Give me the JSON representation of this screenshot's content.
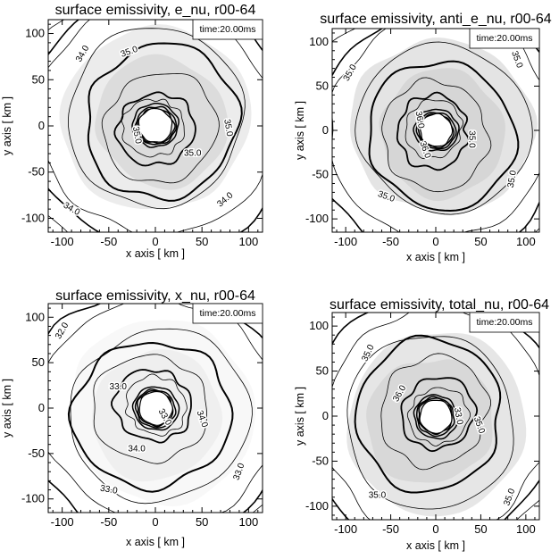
{
  "chart_data": [
    {
      "type": "contour",
      "title": "surface emissivity, e_nu, r00-64",
      "annotation": "time:20.00ms",
      "xlabel": "x axis [ km ]",
      "ylabel": "y axis [ km ]",
      "xlim": [
        -115,
        115
      ],
      "ylim": [
        -115,
        115
      ],
      "xticks": [
        -100,
        -50,
        0,
        50,
        100
      ],
      "yticks": [
        -100,
        -50,
        0,
        50,
        100
      ],
      "contour_labels": [
        "34.0",
        "35.0",
        "35.0",
        "35.0",
        "35.0",
        "34.0",
        "34.0"
      ],
      "fill_colors": [
        "#ececec",
        "#dcdcdc"
      ]
    },
    {
      "type": "contour",
      "title": "surface emissivity, anti_e_nu, r00-64",
      "annotation": "time:20.00ms",
      "xlabel": "x axis [ km ]",
      "ylabel": "y axis [ km ]",
      "xlim": [
        -115,
        115
      ],
      "ylim": [
        -115,
        115
      ],
      "xticks": [
        -100,
        -50,
        0,
        50,
        100
      ],
      "yticks": [
        -100,
        -50,
        0,
        50,
        100
      ],
      "contour_labels": [
        "35.0",
        "35.0",
        "36.0",
        "36.0",
        "35.0",
        "35.0",
        "35.0"
      ],
      "fill_colors": [
        "#e4e4e4",
        "#d6d6d6"
      ]
    },
    {
      "type": "contour",
      "title": "surface emissivity, x_nu, r00-64",
      "annotation": "time:20.00ms",
      "xlabel": "x axis [ km ]",
      "ylabel": "y axis [ km ]",
      "xlim": [
        -115,
        115
      ],
      "ylim": [
        -115,
        115
      ],
      "xticks": [
        -100,
        -50,
        0,
        50,
        100
      ],
      "yticks": [
        -100,
        -50,
        0,
        50,
        100
      ],
      "contour_labels": [
        "32.0",
        "33.0",
        "34.0",
        "33.0",
        "34.0",
        "33.0",
        "33.0"
      ],
      "fill_colors": [
        "#f8f8f8",
        "#efefef"
      ]
    },
    {
      "type": "contour",
      "title": "surface emissivity, total_nu, r00-64",
      "annotation": "time:20.00ms",
      "xlabel": "x axis [ km ]",
      "ylabel": "y axis [ km ]",
      "xlim": [
        -115,
        115
      ],
      "ylim": [
        -115,
        115
      ],
      "xticks": [
        -100,
        -50,
        0,
        50,
        100
      ],
      "yticks": [
        -100,
        -50,
        0,
        50,
        100
      ],
      "contour_labels": [
        "35.0",
        "36.0",
        "35.0",
        "33.0",
        "35.0",
        "35.0"
      ],
      "fill_colors": [
        "#e6e6e6",
        "#d8d8d8"
      ]
    }
  ]
}
